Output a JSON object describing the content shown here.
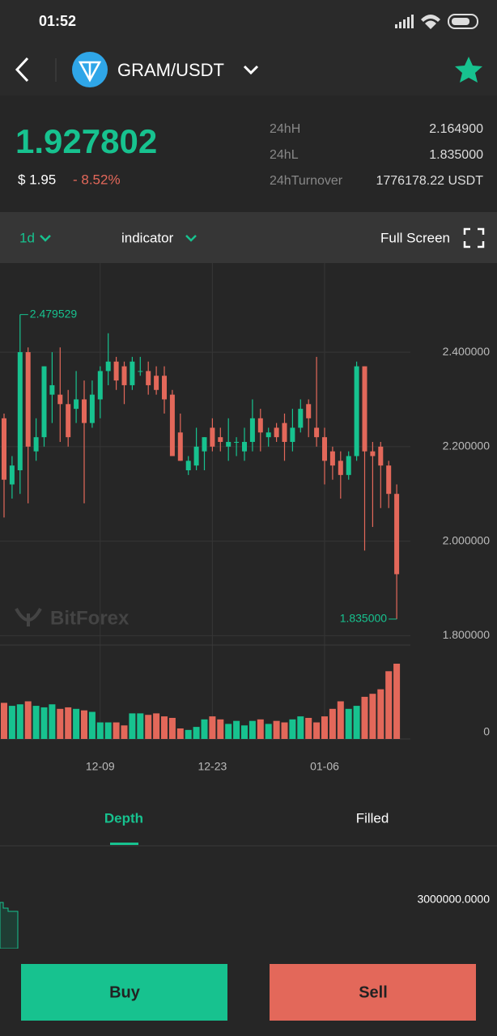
{
  "status_bar": {
    "time": "01:52"
  },
  "header": {
    "pair": "GRAM/USDT"
  },
  "ticker": {
    "price": "1.927802",
    "usd": "$ 1.95",
    "change": "- 8.52%",
    "stats": [
      {
        "label": "24hH",
        "value": "2.164900"
      },
      {
        "label": "24hL",
        "value": "1.835000"
      },
      {
        "label": "24hTurnover",
        "value": "1776178.22 USDT"
      }
    ]
  },
  "toolbar": {
    "interval": "1d",
    "indicator": "indicator",
    "fullscreen": "Full Screen"
  },
  "chart_data": {
    "type": "candlestick",
    "categories": [
      null,
      null,
      null,
      null,
      null,
      null,
      null,
      null,
      null,
      null,
      null,
      null,
      "12-09",
      null,
      null,
      null,
      null,
      null,
      null,
      null,
      null,
      null,
      null,
      null,
      null,
      null,
      "12-23",
      null,
      null,
      null,
      null,
      null,
      null,
      null,
      null,
      null,
      null,
      null,
      null,
      null,
      "01-06",
      null,
      null,
      null,
      null,
      null,
      null,
      null,
      null,
      null
    ],
    "open": [
      2.26,
      2.12,
      2.15,
      2.4,
      2.19,
      2.22,
      2.31,
      2.31,
      2.29,
      2.28,
      2.3,
      2.25,
      2.3,
      2.36,
      2.38,
      2.37,
      2.33,
      2.36,
      2.36,
      2.35,
      2.35,
      2.31,
      2.23,
      2.15,
      2.16,
      2.19,
      2.24,
      2.22,
      2.2,
      2.21,
      2.19,
      2.21,
      2.26,
      2.22,
      2.24,
      2.25,
      2.21,
      2.24,
      2.29,
      2.24,
      2.22,
      2.19,
      2.17,
      2.14,
      2.18,
      2.37,
      2.19,
      2.2,
      2.16,
      2.1
    ],
    "high": [
      2.27,
      2.18,
      2.479529,
      2.41,
      2.26,
      2.37,
      2.4,
      2.41,
      2.32,
      2.36,
      2.34,
      2.34,
      2.37,
      2.44,
      2.39,
      2.38,
      2.39,
      2.39,
      2.38,
      2.37,
      2.37,
      2.32,
      2.27,
      2.18,
      2.24,
      2.22,
      2.26,
      2.24,
      2.26,
      2.22,
      2.24,
      2.3,
      2.28,
      2.24,
      2.25,
      2.27,
      2.28,
      2.3,
      2.3,
      2.39,
      2.24,
      2.2,
      2.19,
      2.19,
      2.38,
      2.37,
      2.21,
      2.21,
      2.17,
      2.12
    ],
    "low": [
      2.05,
      2.09,
      2.1,
      2.08,
      2.17,
      2.2,
      2.25,
      2.21,
      2.2,
      2.25,
      2.08,
      2.24,
      2.26,
      2.33,
      2.32,
      2.29,
      2.32,
      2.35,
      2.31,
      2.31,
      2.27,
      2.18,
      2.17,
      2.14,
      2.15,
      2.15,
      2.19,
      2.19,
      2.17,
      2.18,
      2.17,
      2.19,
      2.19,
      2.2,
      2.21,
      2.17,
      2.19,
      2.23,
      2.22,
      2.2,
      2.12,
      2.13,
      2.09,
      2.13,
      2.17,
      1.98,
      2.03,
      2.07,
      2.07,
      1.835
    ],
    "close": [
      2.13,
      2.16,
      2.4,
      2.2,
      2.22,
      2.37,
      2.33,
      2.29,
      2.22,
      2.3,
      2.25,
      2.31,
      2.36,
      2.38,
      2.34,
      2.33,
      2.38,
      2.36,
      2.33,
      2.32,
      2.3,
      2.18,
      2.17,
      2.17,
      2.2,
      2.22,
      2.2,
      2.21,
      2.21,
      2.21,
      2.21,
      2.26,
      2.23,
      2.23,
      2.22,
      2.21,
      2.24,
      2.28,
      2.26,
      2.22,
      2.17,
      2.16,
      2.14,
      2.18,
      2.37,
      2.19,
      2.18,
      2.16,
      2.1,
      1.93
    ],
    "ylim": [
      1.78,
      2.58
    ],
    "yticks": [
      {
        "value": 2.4,
        "label": "2.400000"
      },
      {
        "value": 2.2,
        "label": "2.200000"
      },
      {
        "value": 2.0,
        "label": "2.000000"
      },
      {
        "value": 1.8,
        "label": "1.800000"
      }
    ],
    "high_label": "2.479529",
    "low_label": "1.835000",
    "watermark": "BitForex",
    "up_color": "#17c28f",
    "down_color": "#e3685a",
    "grid": true,
    "volume": {
      "values": [
        48,
        44,
        46,
        50,
        44,
        42,
        46,
        40,
        42,
        40,
        38,
        36,
        22,
        22,
        22,
        18,
        34,
        34,
        32,
        34,
        30,
        28,
        14,
        12,
        16,
        26,
        30,
        26,
        20,
        24,
        18,
        24,
        26,
        20,
        24,
        22,
        26,
        30,
        28,
        22,
        30,
        40,
        50,
        40,
        44,
        56,
        60,
        66,
        90,
        100
      ],
      "ylim": [
        0,
        100
      ],
      "yticks": [
        0
      ]
    }
  },
  "tabs": [
    "Depth",
    "Filled"
  ],
  "depth": {
    "label": "3000000.0000"
  },
  "buttons": {
    "buy": "Buy",
    "sell": "Sell"
  }
}
